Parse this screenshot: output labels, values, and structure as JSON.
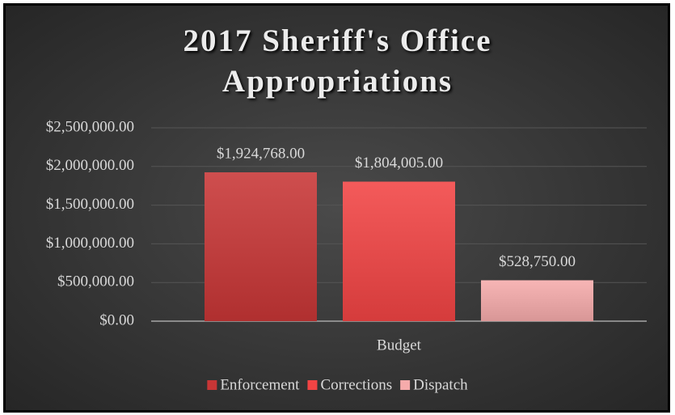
{
  "chart_data": {
    "type": "bar",
    "title": "2017 Sheriff's Office Appropriations",
    "categories": [
      "Budget"
    ],
    "series": [
      {
        "name": "Enforcement",
        "color": "#c83636",
        "values": [
          1924768
        ],
        "value_labels": [
          "$1,924,768.00"
        ]
      },
      {
        "name": "Corrections",
        "color": "#f24444",
        "values": [
          1804005
        ],
        "value_labels": [
          "$1,804,005.00"
        ]
      },
      {
        "name": "Dispatch",
        "color": "#f6abab",
        "values": [
          528750
        ],
        "value_labels": [
          "$528,750.00"
        ]
      }
    ],
    "ylim": [
      0,
      2500000
    ],
    "yticks": [
      {
        "value": 0,
        "label": "$0.00"
      },
      {
        "value": 500000,
        "label": "$500,000.00"
      },
      {
        "value": 1000000,
        "label": "$1,000,000.00"
      },
      {
        "value": 1500000,
        "label": "$1,500,000.00"
      },
      {
        "value": 2000000,
        "label": "$2,000,000.00"
      },
      {
        "value": 2500000,
        "label": "$2,500,000.00"
      }
    ],
    "grid": true,
    "legend": "bottom"
  }
}
